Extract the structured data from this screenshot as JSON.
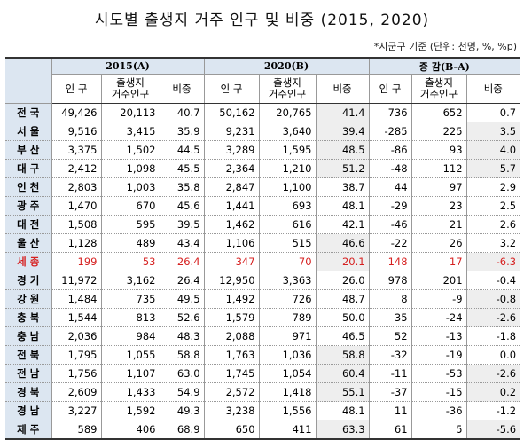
{
  "header": {
    "title": "시도별 출생지 거주 인구 및 비중 (2015, 2020)",
    "note": "*시군구 기준 (단위: 천명, %, %p)"
  },
  "table": {
    "groups": [
      "2015(A)",
      "2020(B)",
      "증 감(B-A)"
    ],
    "subheaders": [
      "인 구",
      "출생지\n거주인구",
      "비중",
      "인 구",
      "출생지\n거주인구",
      "비중",
      "인 구",
      "출생지\n거주인구",
      "비중"
    ],
    "rows": [
      {
        "region": "전 국",
        "cells": [
          "49,426",
          "20,113",
          "40.7",
          "50,162",
          "20,765",
          "41.4",
          "736",
          "652",
          "0.7"
        ]
      },
      {
        "region": "서 울",
        "cells": [
          "9,516",
          "3,415",
          "35.9",
          "9,231",
          "3,640",
          "39.4",
          "-285",
          "225",
          "3.5"
        ]
      },
      {
        "region": "부 산",
        "cells": [
          "3,375",
          "1,502",
          "44.5",
          "3,289",
          "1,595",
          "48.5",
          "-86",
          "93",
          "4.0"
        ]
      },
      {
        "region": "대 구",
        "cells": [
          "2,412",
          "1,098",
          "45.5",
          "2,364",
          "1,210",
          "51.2",
          "-48",
          "112",
          "5.7"
        ]
      },
      {
        "region": "인 천",
        "cells": [
          "2,803",
          "1,003",
          "35.8",
          "2,847",
          "1,100",
          "38.7",
          "44",
          "97",
          "2.9"
        ]
      },
      {
        "region": "광 주",
        "cells": [
          "1,470",
          "670",
          "45.6",
          "1,441",
          "693",
          "48.1",
          "-29",
          "23",
          "2.5"
        ]
      },
      {
        "region": "대 전",
        "cells": [
          "1,508",
          "595",
          "39.5",
          "1,462",
          "616",
          "42.1",
          "-46",
          "21",
          "2.6"
        ]
      },
      {
        "region": "울 산",
        "cells": [
          "1,128",
          "489",
          "43.4",
          "1,106",
          "515",
          "46.6",
          "-22",
          "26",
          "3.2"
        ]
      },
      {
        "region": "세 종",
        "cells": [
          "199",
          "53",
          "26.4",
          "347",
          "70",
          "20.1",
          "148",
          "17",
          "-6.3"
        ]
      },
      {
        "region": "경 기",
        "cells": [
          "11,972",
          "3,162",
          "26.4",
          "12,950",
          "3,363",
          "26.0",
          "978",
          "201",
          "-0.4"
        ]
      },
      {
        "region": "강 원",
        "cells": [
          "1,484",
          "735",
          "49.5",
          "1,492",
          "726",
          "48.7",
          "8",
          "-9",
          "-0.8"
        ]
      },
      {
        "region": "충 북",
        "cells": [
          "1,544",
          "813",
          "52.6",
          "1,579",
          "789",
          "50.0",
          "35",
          "-24",
          "-2.6"
        ]
      },
      {
        "region": "충 남",
        "cells": [
          "2,036",
          "984",
          "48.3",
          "2,088",
          "971",
          "46.5",
          "52",
          "-13",
          "-1.8"
        ]
      },
      {
        "region": "전 북",
        "cells": [
          "1,795",
          "1,055",
          "58.8",
          "1,763",
          "1,036",
          "58.8",
          "-32",
          "-19",
          "0.0"
        ]
      },
      {
        "region": "전 남",
        "cells": [
          "1,756",
          "1,107",
          "63.0",
          "1,745",
          "1,054",
          "60.4",
          "-11",
          "-53",
          "-2.6"
        ]
      },
      {
        "region": "경 북",
        "cells": [
          "2,609",
          "1,433",
          "54.9",
          "2,572",
          "1,418",
          "55.1",
          "-37",
          "-15",
          "0.2"
        ]
      },
      {
        "region": "경 남",
        "cells": [
          "3,227",
          "1,592",
          "49.3",
          "3,238",
          "1,556",
          "48.1",
          "11",
          "-36",
          "-1.2"
        ]
      },
      {
        "region": "제 주",
        "cells": [
          "589",
          "406",
          "68.9",
          "650",
          "411",
          "63.3",
          "61",
          "5",
          "-5.6"
        ]
      }
    ]
  }
}
